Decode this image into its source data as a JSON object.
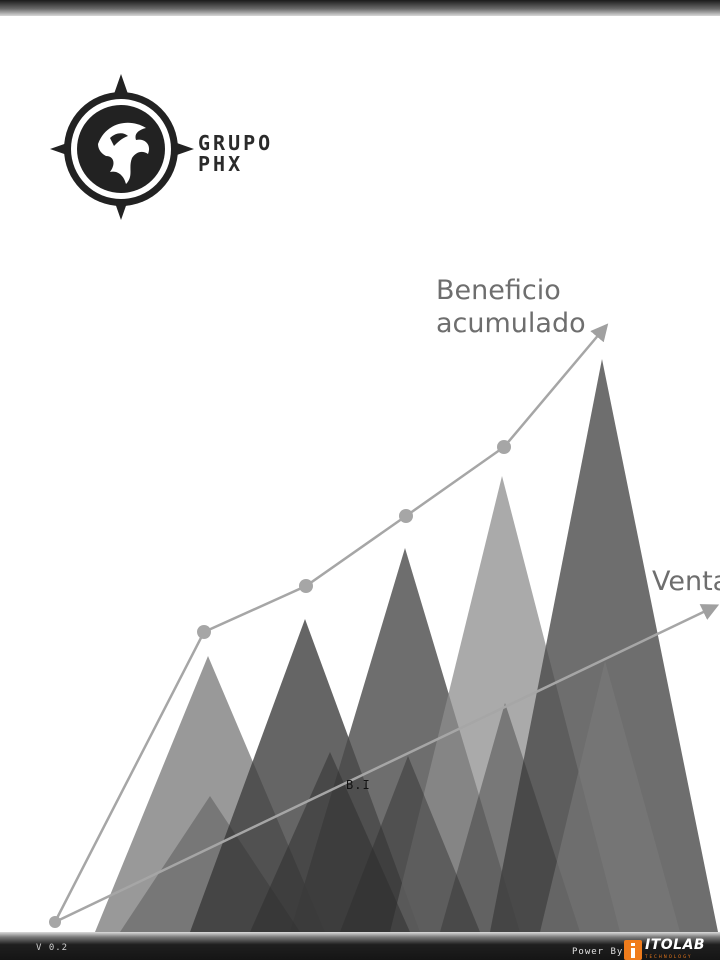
{
  "logo": {
    "line1": "GRUPO",
    "line2": "PHX",
    "icon": "dragon-compass-emblem-icon"
  },
  "chart": {
    "line_labels": {
      "profit_line1": "Beneficio",
      "profit_line2": "acumulado",
      "sales": "Ventas"
    },
    "center_label": "B.I"
  },
  "footer": {
    "version": "V 0.2",
    "powered_by": "Power By",
    "brand": "ITOLAB",
    "brand_sub": "TECHNOLOGY",
    "brand_color": "#f07c1c"
  },
  "colors": {
    "bar_top": "#3a3a3a",
    "accent": "#f07c1c",
    "line": "#9a9a9a"
  }
}
